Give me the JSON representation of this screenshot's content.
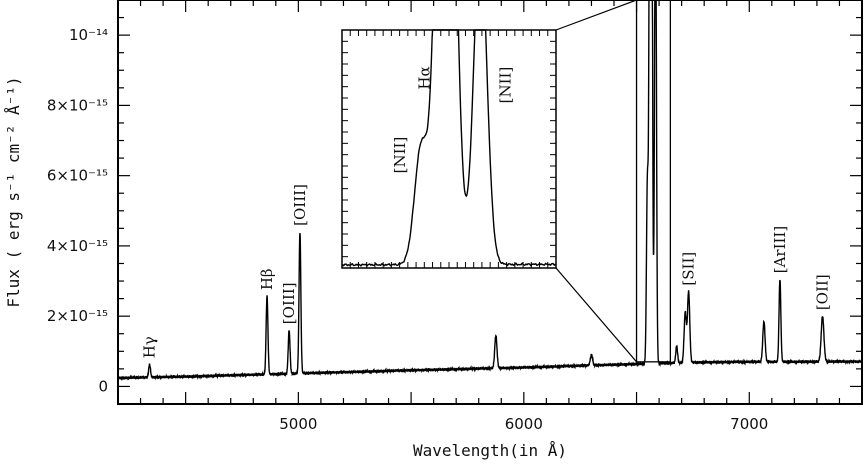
{
  "chart_data": {
    "type": "line",
    "xlabel": "Wavelength(in Å)",
    "ylabel": "Flux ( erg s⁻¹ cm⁻² Å⁻¹)",
    "xlim": [
      4200,
      7500
    ],
    "ylim": [
      -5e-16,
      1.1e-14
    ],
    "x_ticks": [
      {
        "value": 5000,
        "label": "5000"
      },
      {
        "value": 6000,
        "label": "6000"
      },
      {
        "value": 7000,
        "label": "7000"
      }
    ],
    "y_ticks": [
      {
        "value": 0,
        "label": "0"
      },
      {
        "value": 2e-15,
        "label": "2×10⁻¹⁵"
      },
      {
        "value": 4e-15,
        "label": "4×10⁻¹⁵"
      },
      {
        "value": 6e-15,
        "label": "6×10⁻¹⁵"
      },
      {
        "value": 8e-15,
        "label": "8×10⁻¹⁵"
      },
      {
        "value": 1e-14,
        "label": "10⁻¹⁴"
      }
    ],
    "continuum": {
      "x": [
        4200,
        4500,
        5000,
        5500,
        6000,
        6500,
        6800,
        7000,
        7500
      ],
      "y": [
        2.4e-16,
        2.8e-16,
        3.7e-16,
        4.6e-16,
        5.4e-16,
        6.4e-16,
        6.9e-16,
        7e-16,
        7.1e-16
      ]
    },
    "emission_lines": [
      {
        "x": 4340,
        "peak": 6.3e-16,
        "width": 4,
        "label": "Hγ"
      },
      {
        "x": 4861,
        "peak": 2.57e-15,
        "width": 4,
        "label": "Hβ"
      },
      {
        "x": 4959,
        "peak": 1.6e-15,
        "width": 4,
        "label": "[OIII]"
      },
      {
        "x": 5007,
        "peak": 4.4e-15,
        "width": 4,
        "label": "[OIII]"
      },
      {
        "x": 5876,
        "peak": 1.45e-15,
        "width": 5,
        "label": ""
      },
      {
        "x": 6300,
        "peak": 9e-16,
        "width": 5,
        "label": ""
      },
      {
        "x": 6548,
        "peak": 5.7e-15,
        "width": 4,
        "label": ""
      },
      {
        "x": 6563,
        "peak": 3.5e-14,
        "width": 5,
        "label": ""
      },
      {
        "x": 6584,
        "peak": 1.5e-14,
        "width": 4,
        "label": ""
      },
      {
        "x": 6678,
        "peak": 1.15e-15,
        "width": 4,
        "label": ""
      },
      {
        "x": 6716,
        "peak": 2.1e-15,
        "width": 5,
        "label": ""
      },
      {
        "x": 6731,
        "peak": 2.7e-15,
        "width": 5,
        "label": "[SII]"
      },
      {
        "x": 7065,
        "peak": 1.85e-15,
        "width": 5,
        "label": ""
      },
      {
        "x": 7136,
        "peak": 3.05e-15,
        "width": 4,
        "label": "[ArIII]"
      },
      {
        "x": 7325,
        "peak": 2e-15,
        "width": 6,
        "label": "[OII]"
      }
    ],
    "zoom_box": {
      "x": [
        6500,
        6650
      ],
      "y": [
        7e-16,
        1.1e-14
      ]
    },
    "inset": {
      "xlim": [
        6500,
        6630
      ],
      "ylim": [
        5e-16,
        1.1e-14
      ],
      "labels": [
        {
          "text": "[NII]",
          "x": 6548
        },
        {
          "text": "Hα",
          "x": 6563
        },
        {
          "text": "[NII]",
          "x": 6584
        }
      ]
    }
  }
}
